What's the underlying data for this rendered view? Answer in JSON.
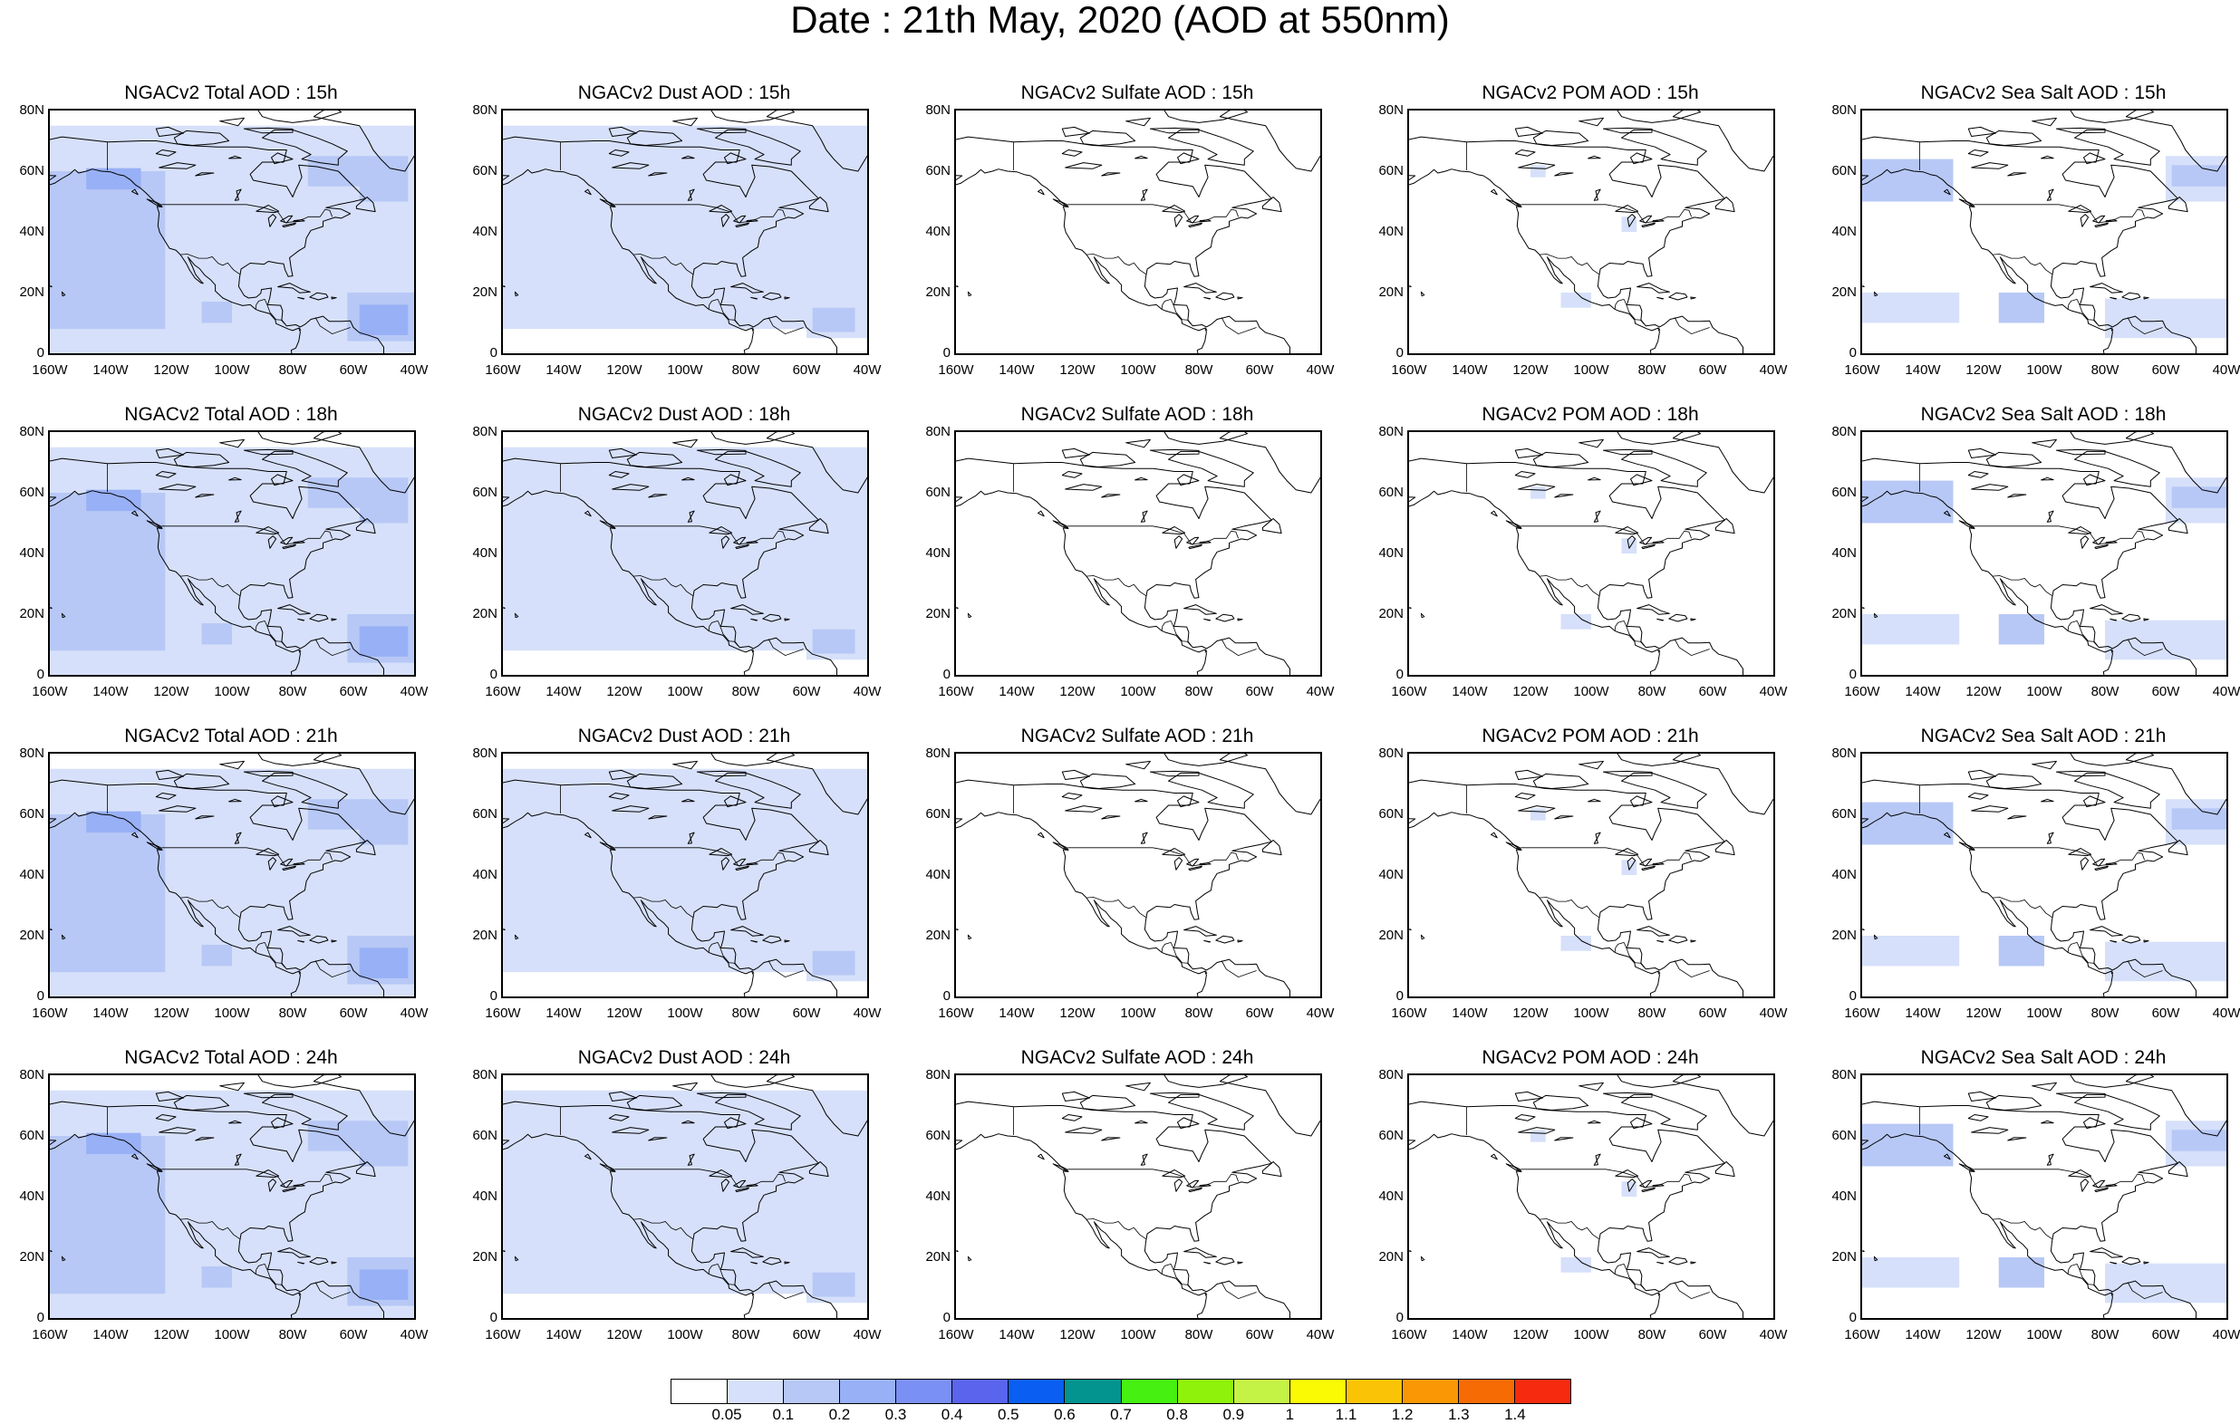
{
  "title": "Date : 21th May, 2020 (AOD at 550nm)",
  "x_tick_labels": [
    "160W",
    "140W",
    "120W",
    "100W",
    "80W",
    "60W",
    "40W"
  ],
  "y_tick_labels": [
    "0",
    "20N",
    "40N",
    "60N",
    "80N"
  ],
  "map_extent": {
    "lon_range": [
      -160,
      -40
    ],
    "lat_range": [
      0,
      80
    ]
  },
  "colors": {
    "outline": "#000000",
    "ocean_bg": "#ffffff"
  },
  "panels": [
    {
      "title": "NGACv2 Total AOD : 15h",
      "field": "total"
    },
    {
      "title": "NGACv2 Dust AOD : 15h",
      "field": "dust"
    },
    {
      "title": "NGACv2 Sulfate AOD : 15h",
      "field": "sulfate"
    },
    {
      "title": "NGACv2 POM AOD : 15h",
      "field": "pom"
    },
    {
      "title": "NGACv2 Sea Salt AOD : 15h",
      "field": "seasalt"
    },
    {
      "title": "NGACv2 Total AOD : 18h",
      "field": "total"
    },
    {
      "title": "NGACv2 Dust AOD : 18h",
      "field": "dust"
    },
    {
      "title": "NGACv2 Sulfate AOD : 18h",
      "field": "sulfate"
    },
    {
      "title": "NGACv2 POM AOD : 18h",
      "field": "pom"
    },
    {
      "title": "NGACv2 Sea Salt AOD : 18h",
      "field": "seasalt"
    },
    {
      "title": "NGACv2 Total AOD : 21h",
      "field": "total"
    },
    {
      "title": "NGACv2 Dust AOD : 21h",
      "field": "dust"
    },
    {
      "title": "NGACv2 Sulfate AOD : 21h",
      "field": "sulfate"
    },
    {
      "title": "NGACv2 POM AOD : 21h",
      "field": "pom"
    },
    {
      "title": "NGACv2 Sea Salt AOD : 21h",
      "field": "seasalt"
    },
    {
      "title": "NGACv2 Total AOD : 24h",
      "field": "total"
    },
    {
      "title": "NGACv2 Dust AOD : 24h",
      "field": "dust"
    },
    {
      "title": "NGACv2 Sulfate AOD : 24h",
      "field": "sulfate"
    },
    {
      "title": "NGACv2 POM AOD : 24h",
      "field": "pom"
    },
    {
      "title": "NGACv2 Sea Salt  AOD : 24h",
      "field": "seasalt"
    }
  ],
  "colorbar": {
    "colors": [
      "#ffffff",
      "#d6e0fa",
      "#b7c8f6",
      "#98b0f6",
      "#7a90f4",
      "#5a64ec",
      "#0a5ef2",
      "#03948f",
      "#46f010",
      "#8ef20a",
      "#c4f245",
      "#fafa05",
      "#fac305",
      "#fa9705",
      "#f76b05",
      "#f52a0f"
    ],
    "labels": [
      "0.05",
      "0.1",
      "0.2",
      "0.3",
      "0.4",
      "0.5",
      "0.6",
      "0.7",
      "0.8",
      "0.9",
      "1",
      "1.1",
      "1.2",
      "1.3",
      "1.4"
    ]
  }
}
